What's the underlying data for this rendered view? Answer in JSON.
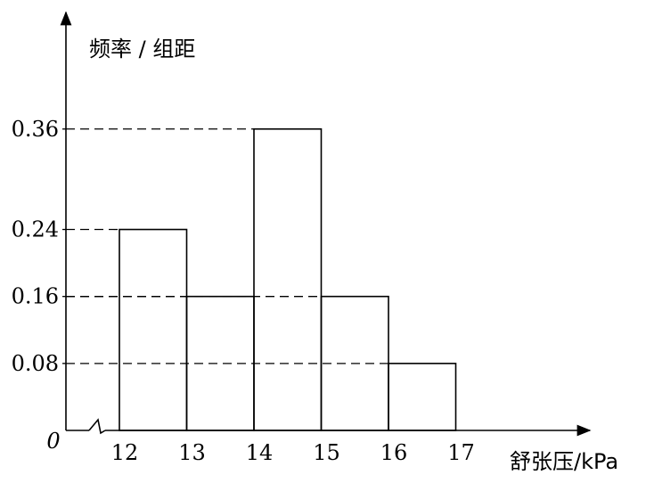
{
  "chart_data": {
    "type": "bar",
    "subtype": "histogram",
    "ylabel": "频率 / 组距",
    "xlabel": "舒张压/kPa",
    "origin_label": "0",
    "x_ticks": [
      "12",
      "13",
      "14",
      "15",
      "16",
      "17"
    ],
    "y_ticks": [
      "0.08",
      "0.16",
      "0.24",
      "0.36"
    ],
    "bins": [
      {
        "from": 12,
        "to": 13,
        "value": 0.24
      },
      {
        "from": 13,
        "to": 14,
        "value": 0.16
      },
      {
        "from": 14,
        "to": 15,
        "value": 0.36
      },
      {
        "from": 15,
        "to": 16,
        "value": 0.16
      },
      {
        "from": 16,
        "to": 17,
        "value": 0.08
      }
    ],
    "x_axis_break": true,
    "reference_lines": "dashed",
    "grid": false,
    "legend": "none"
  }
}
